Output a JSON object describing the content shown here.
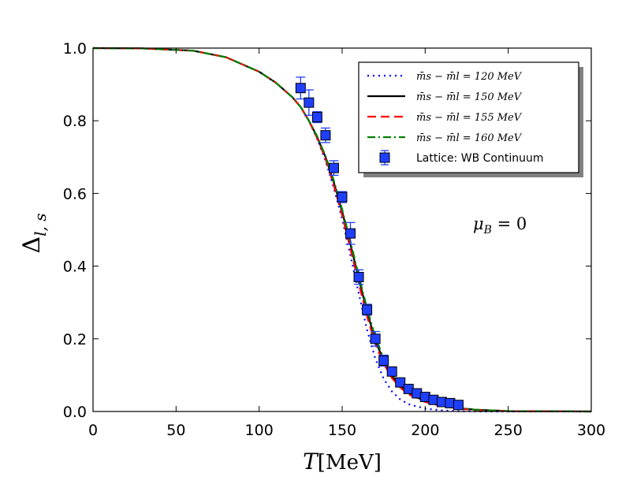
{
  "chart_data": {
    "type": "line",
    "xlabel": "T[MeV]",
    "ylabel": "Δl,s",
    "xlim": [
      0,
      300
    ],
    "ylim": [
      0,
      1.0
    ],
    "x_ticks": [
      "0",
      "50",
      "100",
      "150",
      "200",
      "250",
      "300"
    ],
    "y_ticks": [
      "0.0",
      "0.2",
      "0.4",
      "0.6",
      "0.8",
      "1.0"
    ],
    "annotation": "μB = 0",
    "grid": false,
    "legend_position": "top-right",
    "series": [
      {
        "name": "m̄s − m̄l = 120 MeV",
        "style": "dotted",
        "color": "#0000ff",
        "x": [
          0,
          30,
          60,
          80,
          100,
          110,
          120,
          125,
          130,
          135,
          140,
          145,
          150,
          155,
          160,
          165,
          170,
          175,
          180,
          185,
          190,
          200,
          210,
          220,
          230,
          250,
          300
        ],
        "y": [
          1.0,
          0.999,
          0.993,
          0.975,
          0.935,
          0.905,
          0.865,
          0.838,
          0.8,
          0.75,
          0.69,
          0.615,
          0.53,
          0.43,
          0.325,
          0.225,
          0.145,
          0.09,
          0.055,
          0.033,
          0.02,
          0.008,
          0.003,
          0.001,
          0.0,
          0.0,
          0.0
        ]
      },
      {
        "name": "m̄s − m̄l = 150 MeV",
        "style": "solid",
        "color": "#000000",
        "x": [
          0,
          30,
          60,
          80,
          100,
          110,
          120,
          125,
          130,
          135,
          140,
          145,
          150,
          155,
          160,
          165,
          170,
          175,
          180,
          185,
          190,
          200,
          210,
          220,
          230,
          250,
          300
        ],
        "y": [
          1.0,
          0.999,
          0.993,
          0.975,
          0.935,
          0.905,
          0.865,
          0.838,
          0.8,
          0.755,
          0.7,
          0.63,
          0.55,
          0.46,
          0.365,
          0.275,
          0.195,
          0.14,
          0.098,
          0.07,
          0.05,
          0.028,
          0.016,
          0.009,
          0.005,
          0.001,
          0.0
        ]
      },
      {
        "name": "m̄s − m̄l = 155 MeV",
        "style": "dashed",
        "color": "#ff0000",
        "x": [
          0,
          30,
          60,
          80,
          100,
          110,
          120,
          125,
          130,
          135,
          140,
          145,
          150,
          155,
          160,
          165,
          170,
          175,
          180,
          185,
          190,
          200,
          210,
          220,
          230,
          250,
          300
        ],
        "y": [
          1.0,
          0.999,
          0.993,
          0.975,
          0.935,
          0.905,
          0.865,
          0.838,
          0.8,
          0.752,
          0.695,
          0.622,
          0.54,
          0.448,
          0.352,
          0.262,
          0.185,
          0.132,
          0.092,
          0.066,
          0.047,
          0.026,
          0.015,
          0.008,
          0.004,
          0.001,
          0.0
        ]
      },
      {
        "name": "m̄s − m̄l = 160 MeV",
        "style": "dashdot",
        "color": "#008000",
        "x": [
          0,
          30,
          60,
          80,
          100,
          110,
          120,
          125,
          130,
          135,
          140,
          145,
          150,
          155,
          160,
          165,
          170,
          175,
          180,
          185,
          190,
          200,
          210,
          220,
          230,
          250,
          300
        ],
        "y": [
          1.0,
          0.999,
          0.993,
          0.975,
          0.935,
          0.905,
          0.865,
          0.838,
          0.8,
          0.757,
          0.703,
          0.635,
          0.556,
          0.468,
          0.374,
          0.284,
          0.204,
          0.147,
          0.104,
          0.075,
          0.054,
          0.031,
          0.018,
          0.01,
          0.005,
          0.001,
          0.0
        ]
      },
      {
        "name": "Lattice: WB Continuum",
        "style": "markers",
        "color": "#1f3fff",
        "x": [
          125,
          130,
          135,
          140,
          145,
          150,
          155,
          160,
          165,
          170,
          175,
          180,
          185,
          190,
          195,
          200,
          205,
          210,
          215,
          220
        ],
        "y": [
          0.89,
          0.85,
          0.81,
          0.76,
          0.67,
          0.59,
          0.49,
          0.37,
          0.28,
          0.2,
          0.14,
          0.11,
          0.08,
          0.062,
          0.05,
          0.04,
          0.032,
          0.026,
          0.023,
          0.018
        ],
        "err": [
          0.03,
          0.035,
          0.015,
          0.02,
          0.02,
          0.015,
          0.03,
          0.02,
          0.015,
          0.02,
          0.015,
          0.012,
          0.01,
          0.008,
          0.008,
          0.007,
          0.006,
          0.006,
          0.005,
          0.005
        ]
      }
    ]
  }
}
